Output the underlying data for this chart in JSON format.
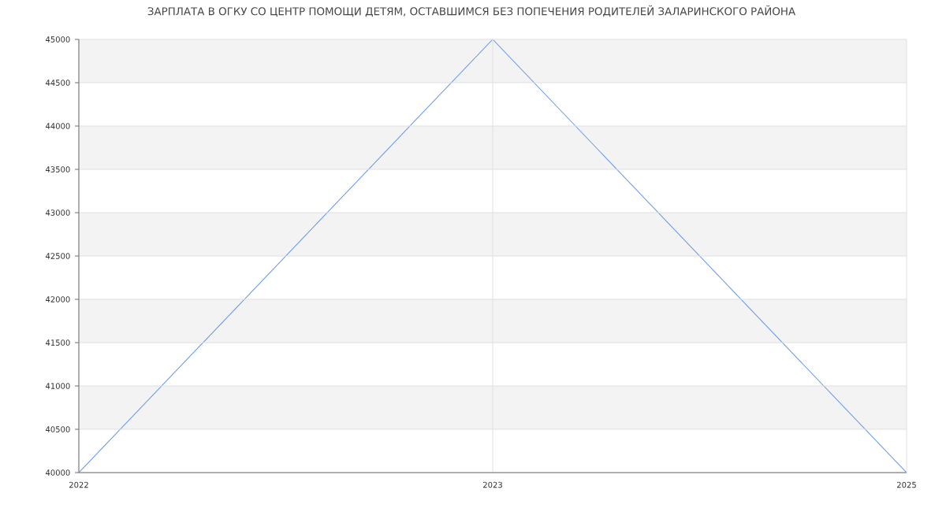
{
  "chart_data": {
    "type": "line",
    "title": "ЗАРПЛАТА В ОГКУ СО ЦЕНТР ПОМОЩИ ДЕТЯМ, ОСТАВШИМСЯ БЕЗ ПОПЕЧЕНИЯ РОДИТЕЛЕЙ ЗАЛАРИНСКОГО РАЙОНА",
    "categories": [
      "2022",
      "2023",
      "2025"
    ],
    "values": [
      40000,
      45000,
      40000
    ],
    "color": "#6495ed",
    "ylim": [
      40000,
      45000
    ],
    "yticks": [
      40000,
      40500,
      41000,
      41500,
      42000,
      42500,
      43000,
      43500,
      44000,
      44500,
      45000
    ],
    "grid": true,
    "bands": [
      {
        "axis": "y",
        "from": 40500,
        "to": 41000,
        "color": "#f3f3f3"
      },
      {
        "axis": "y",
        "from": 41500,
        "to": 42000,
        "color": "#f3f3f3"
      },
      {
        "axis": "y",
        "from": 42500,
        "to": 43000,
        "color": "#f3f3f3"
      },
      {
        "axis": "y",
        "from": 43500,
        "to": 44000,
        "color": "#f3f3f3"
      },
      {
        "axis": "y",
        "from": 44500,
        "to": 45000,
        "color": "#f3f3f3"
      }
    ]
  }
}
